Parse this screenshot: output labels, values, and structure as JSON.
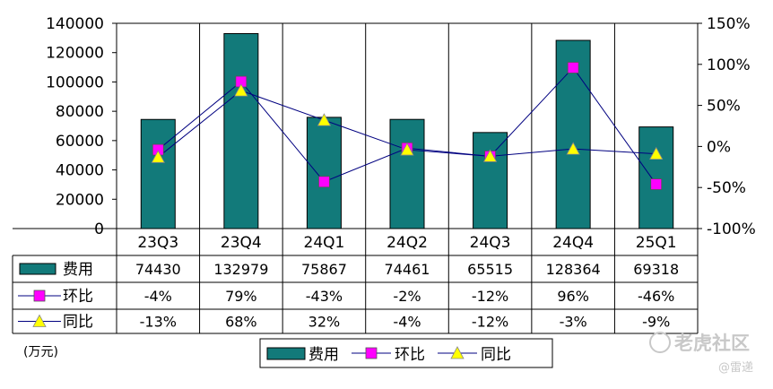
{
  "chart_data": {
    "type": "bar",
    "categories": [
      "23Q3",
      "23Q4",
      "24Q1",
      "24Q2",
      "24Q3",
      "24Q4",
      "25Q1"
    ],
    "series": [
      {
        "name": "费用",
        "type": "bar",
        "axis": "left",
        "color": "#127a7a",
        "values": [
          74430,
          132979,
          75867,
          74461,
          65515,
          128364,
          69318
        ],
        "labels": [
          "74430",
          "132979",
          "75867",
          "74461",
          "65515",
          "128364",
          "69318"
        ]
      },
      {
        "name": "环比",
        "type": "line",
        "axis": "right",
        "marker": "square",
        "color": "#ff00ff",
        "values": [
          -4,
          79,
          -43,
          -2,
          -12,
          96,
          -46
        ],
        "labels": [
          "-4%",
          "79%",
          "-43%",
          "-2%",
          "-12%",
          "96%",
          "-46%"
        ]
      },
      {
        "name": "同比",
        "type": "line",
        "axis": "right",
        "marker": "triangle",
        "color": "#ffff00",
        "values": [
          -13,
          68,
          32,
          -4,
          -12,
          -3,
          -9
        ],
        "labels": [
          "-13%",
          "68%",
          "32%",
          "-4%",
          "-12%",
          "-3%",
          "-9%"
        ]
      }
    ],
    "ylim": [
      0,
      140000
    ],
    "y_ticks": [
      "140000",
      "120000",
      "100000",
      "80000",
      "60000",
      "40000",
      "20000",
      "0"
    ],
    "y2lim": [
      -100,
      150
    ],
    "y2_ticks": [
      "150%",
      "100%",
      "50%",
      "0%",
      "-50%",
      "-100%"
    ],
    "unit": "(万元)",
    "legend": "bottom",
    "data_table": true,
    "line_color": "#000080"
  },
  "watermark": {
    "brand": "老虎社区",
    "author": "@雷递"
  }
}
